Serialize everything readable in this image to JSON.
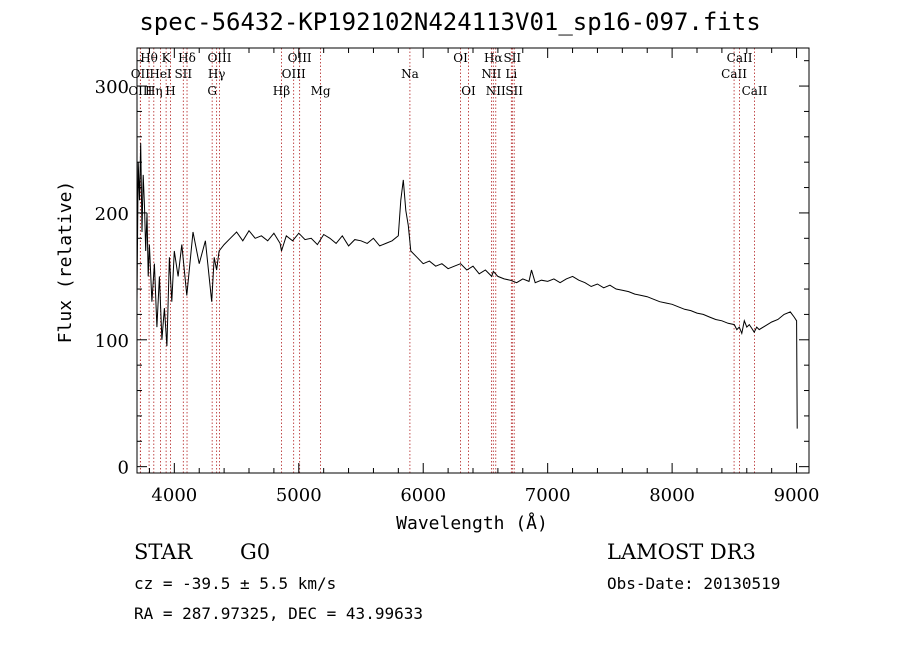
{
  "title": "spec-56432-KP192102N424113V01_sp16-097.fits",
  "info": {
    "classification": "STAR",
    "subclass": "G0",
    "survey": "LAMOST DR3",
    "redshift": "cz = -39.5 ± 5.5 km/s",
    "obs_date": "Obs-Date: 20130519",
    "coords": "RA = 287.97325, DEC =  43.99633"
  },
  "chart_data": {
    "type": "line",
    "xlabel": "Wavelength (Å)",
    "ylabel": "Flux (relative)",
    "xlim": [
      3700,
      9100
    ],
    "ylim": [
      -5,
      330
    ],
    "xticks": [
      4000,
      5000,
      6000,
      7000,
      8000,
      9000
    ],
    "yticks": [
      0,
      100,
      200,
      300
    ],
    "series": [
      {
        "name": "flux",
        "x": [
          3700,
          3710,
          3720,
          3730,
          3740,
          3750,
          3760,
          3770,
          3780,
          3790,
          3800,
          3820,
          3840,
          3860,
          3880,
          3900,
          3920,
          3940,
          3960,
          3980,
          4000,
          4030,
          4060,
          4100,
          4150,
          4200,
          4250,
          4300,
          4320,
          4340,
          4360,
          4400,
          4450,
          4500,
          4550,
          4600,
          4650,
          4700,
          4750,
          4800,
          4850,
          4861,
          4900,
          4950,
          5000,
          5050,
          5100,
          5150,
          5200,
          5250,
          5300,
          5350,
          5400,
          5450,
          5500,
          5550,
          5600,
          5650,
          5700,
          5750,
          5800,
          5820,
          5840,
          5860,
          5880,
          5900,
          5950,
          6000,
          6050,
          6100,
          6150,
          6200,
          6250,
          6300,
          6350,
          6400,
          6450,
          6500,
          6550,
          6563,
          6600,
          6650,
          6700,
          6750,
          6800,
          6850,
          6870,
          6900,
          6950,
          7000,
          7050,
          7100,
          7150,
          7200,
          7250,
          7300,
          7350,
          7400,
          7450,
          7500,
          7550,
          7600,
          7650,
          7700,
          7750,
          7800,
          7850,
          7900,
          7950,
          8000,
          8050,
          8100,
          8150,
          8200,
          8250,
          8300,
          8350,
          8400,
          8450,
          8500,
          8520,
          8540,
          8560,
          8580,
          8600,
          8620,
          8640,
          8660,
          8680,
          8700,
          8750,
          8800,
          8850,
          8900,
          8950,
          8980,
          9000,
          9005
        ],
        "y": [
          130,
          240,
          210,
          255,
          185,
          230,
          205,
          170,
          200,
          150,
          175,
          130,
          160,
          110,
          150,
          100,
          125,
          95,
          165,
          130,
          170,
          150,
          175,
          135,
          185,
          160,
          178,
          130,
          165,
          155,
          170,
          175,
          180,
          185,
          178,
          186,
          180,
          182,
          178,
          184,
          176,
          170,
          182,
          178,
          184,
          179,
          180,
          175,
          183,
          180,
          176,
          182,
          174,
          179,
          178,
          176,
          180,
          174,
          176,
          178,
          182,
          210,
          226,
          202,
          190,
          170,
          165,
          160,
          162,
          158,
          160,
          156,
          158,
          160,
          155,
          158,
          152,
          155,
          150,
          154,
          150,
          148,
          147,
          145,
          148,
          146,
          155,
          145,
          147,
          146,
          148,
          145,
          148,
          150,
          147,
          145,
          142,
          144,
          141,
          143,
          140,
          139,
          138,
          136,
          135,
          134,
          132,
          130,
          129,
          128,
          126,
          124,
          123,
          121,
          120,
          118,
          116,
          115,
          113,
          112,
          108,
          110,
          105,
          115,
          110,
          112,
          109,
          106,
          110,
          108,
          111,
          114,
          116,
          120,
          122,
          118,
          115,
          30
        ]
      }
    ],
    "lines": [
      {
        "label": "Hθ",
        "wave": 3797,
        "row": 1
      },
      {
        "label": "OII",
        "wave": 3727,
        "row": 2
      },
      {
        "label": "OIII",
        "wave": 3727,
        "row": 3
      },
      {
        "label": "K",
        "wave": 3934,
        "row": 1
      },
      {
        "label": "HeI",
        "wave": 3889,
        "row": 2
      },
      {
        "label": "Hη",
        "wave": 3835,
        "row": 3
      },
      {
        "label": "H",
        "wave": 3969,
        "row": 3
      },
      {
        "label": "SII",
        "wave": 4072,
        "row": 2
      },
      {
        "label": "Hδ",
        "wave": 4102,
        "row": 1
      },
      {
        "label": "OIII",
        "wave": 4363,
        "row": 1
      },
      {
        "label": "Hγ",
        "wave": 4340,
        "row": 2
      },
      {
        "label": "G",
        "wave": 4304,
        "row": 3
      },
      {
        "label": "OIII",
        "wave": 5007,
        "row": 1
      },
      {
        "label": "OIII",
        "wave": 4959,
        "row": 2
      },
      {
        "label": "Hβ",
        "wave": 4861,
        "row": 3
      },
      {
        "label": "Mg",
        "wave": 5175,
        "row": 3
      },
      {
        "label": "Na",
        "wave": 5893,
        "row": 2
      },
      {
        "label": "OI",
        "wave": 6300,
        "row": 1
      },
      {
        "label": "OI",
        "wave": 6364,
        "row": 3
      },
      {
        "label": "Hα",
        "wave": 6563,
        "row": 1
      },
      {
        "label": "SII",
        "wave": 6716,
        "row": 1
      },
      {
        "label": "NII",
        "wave": 6548,
        "row": 2
      },
      {
        "label": "Li",
        "wave": 6708,
        "row": 2
      },
      {
        "label": "NII",
        "wave": 6583,
        "row": 3
      },
      {
        "label": "SII",
        "wave": 6731,
        "row": 3
      },
      {
        "label": "CaII",
        "wave": 8542,
        "row": 1
      },
      {
        "label": "CaII",
        "wave": 8498,
        "row": 2
      },
      {
        "label": "CaII",
        "wave": 8662,
        "row": 3
      }
    ]
  }
}
